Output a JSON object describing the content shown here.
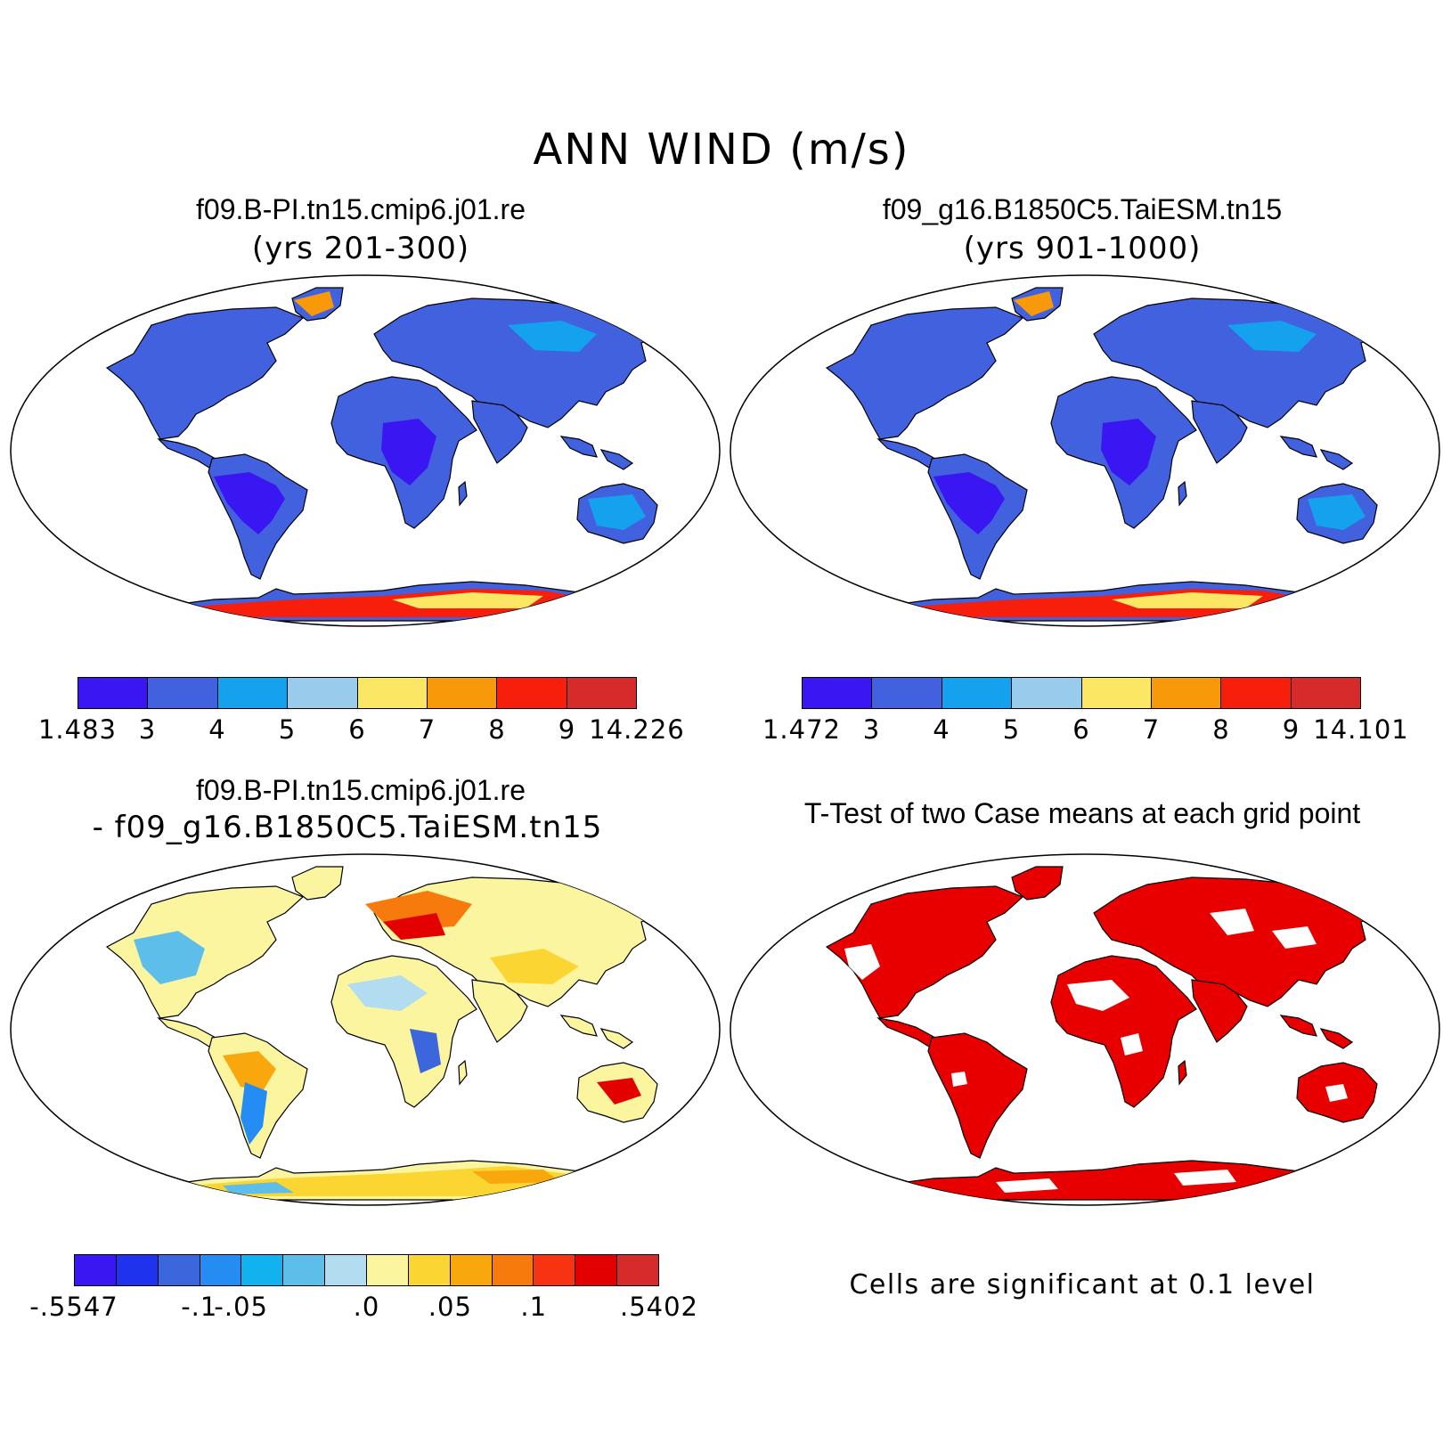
{
  "title": "ANN WIND (m/s)",
  "panels": {
    "case1": {
      "title": "f09.B-PI.tn15.cmip6.j01.re",
      "subtitle": "(yrs 201-300)"
    },
    "case2": {
      "title": "f09_g16.B1850C5.TaiESM.tn15",
      "subtitle": "(yrs 901-1000)"
    },
    "diff": {
      "title": "f09.B-PI.tn15.cmip6.j01.re",
      "subtitle": "- f09_g16.B1850C5.TaiESM.tn15"
    },
    "ttest": {
      "title": "T-Test of two Case means at each grid point",
      "note": "Cells are significant at 0.1 level"
    }
  },
  "colorbars": {
    "case1": {
      "colors": [
        "#3a17f2",
        "#4261de",
        "#14a2ef",
        "#99ccec",
        "#fbe763",
        "#f8990a",
        "#f71e0c",
        "#d62b2b"
      ],
      "labels": [
        "1.483",
        "3",
        "4",
        "5",
        "6",
        "7",
        "8",
        "9",
        "14.226"
      ]
    },
    "case2": {
      "colors": [
        "#3a17f2",
        "#4261de",
        "#14a2ef",
        "#99ccec",
        "#fbe763",
        "#f8990a",
        "#f71e0c",
        "#d62b2b"
      ],
      "labels": [
        "1.472",
        "3",
        "4",
        "5",
        "6",
        "7",
        "8",
        "9",
        "14.101"
      ]
    },
    "diff": {
      "colors": [
        "#3a17f2",
        "#1f33ee",
        "#3c66db",
        "#248cf2",
        "#12b2ee",
        "#5dbfe9",
        "#b2dcef",
        "#fcf5a0",
        "#fbd632",
        "#f8a70d",
        "#f77a0c",
        "#f73312",
        "#e20000",
        "#d62b2b"
      ],
      "labels": [
        "-.5547",
        "",
        "",
        "-.1",
        "-.05",
        "",
        "",
        ".0",
        "",
        ".05",
        "",
        ".1",
        "",
        "",
        ".5402"
      ]
    }
  }
}
